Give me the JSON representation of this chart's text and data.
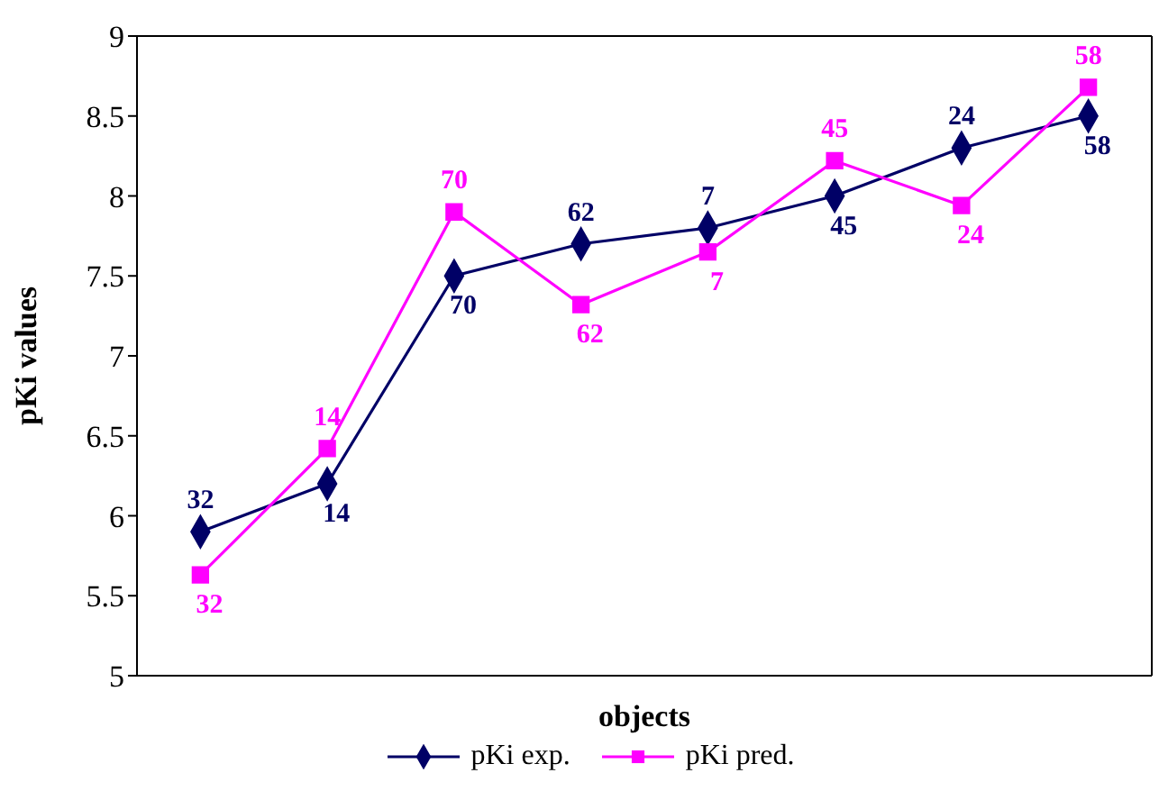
{
  "chart_data": {
    "type": "line",
    "xlabel": "objects",
    "ylabel": "pKi values",
    "categories": [
      null,
      null,
      null,
      null,
      null,
      null,
      null,
      null
    ],
    "series": [
      {
        "name": "pKi exp.",
        "color": "#000066",
        "marker": "diamond",
        "values": [
          5.9,
          6.2,
          7.5,
          7.7,
          7.8,
          8.0,
          8.3,
          8.5
        ]
      },
      {
        "name": "pKi pred.",
        "color": "#ff00ff",
        "marker": "square",
        "values": [
          5.63,
          6.42,
          7.9,
          7.32,
          7.65,
          8.22,
          7.94,
          8.68
        ]
      }
    ],
    "annotations": [
      {
        "text": "32",
        "y": 5.9
      },
      {
        "text": "14",
        "y": 6.2
      },
      {
        "text": "70",
        "y": 7.5
      },
      {
        "text": "62",
        "y": 7.7
      },
      {
        "text": "7",
        "y": 7.8
      },
      {
        "text": "45",
        "y": 8.0
      },
      {
        "text": "24",
        "y": 8.3
      },
      {
        "text": "58",
        "y": 8.5
      },
      {
        "text": "32",
        "y": 5.63
      },
      {
        "text": "14",
        "y": 6.42
      },
      {
        "text": "70",
        "y": 7.9
      },
      {
        "text": "62",
        "y": 7.32
      },
      {
        "text": "7",
        "y": 7.65
      },
      {
        "text": "45",
        "y": 8.22
      },
      {
        "text": "24",
        "y": 7.94
      },
      {
        "text": "58",
        "y": 8.68
      }
    ],
    "ylim": [
      5,
      9
    ],
    "yticks": [
      5,
      5.5,
      6,
      6.5,
      7,
      7.5,
      8,
      8.5,
      9
    ],
    "grid": false,
    "legend": "bottom",
    "line_style": "solid"
  }
}
